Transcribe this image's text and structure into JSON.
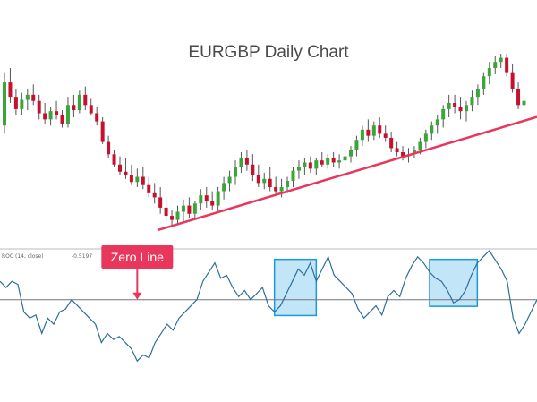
{
  "chart_data": [
    {
      "type": "candlestick",
      "title": "EURGBP Daily Chart",
      "colors": {
        "up": "#3aa63a",
        "down": "#c8102e",
        "wick": "#555555",
        "trendline": "#e8365d"
      },
      "candles": [
        {
          "o": 0.3,
          "h": 0.82,
          "l": 0.22,
          "c": 0.72
        },
        {
          "o": 0.72,
          "h": 0.86,
          "l": 0.52,
          "c": 0.58
        },
        {
          "o": 0.58,
          "h": 0.66,
          "l": 0.4,
          "c": 0.46
        },
        {
          "o": 0.46,
          "h": 0.62,
          "l": 0.4,
          "c": 0.55
        },
        {
          "o": 0.55,
          "h": 0.66,
          "l": 0.45,
          "c": 0.6
        },
        {
          "o": 0.6,
          "h": 0.7,
          "l": 0.5,
          "c": 0.54
        },
        {
          "o": 0.54,
          "h": 0.6,
          "l": 0.36,
          "c": 0.42
        },
        {
          "o": 0.42,
          "h": 0.52,
          "l": 0.32,
          "c": 0.36
        },
        {
          "o": 0.36,
          "h": 0.48,
          "l": 0.3,
          "c": 0.44
        },
        {
          "o": 0.44,
          "h": 0.54,
          "l": 0.36,
          "c": 0.4
        },
        {
          "o": 0.4,
          "h": 0.45,
          "l": 0.28,
          "c": 0.32
        },
        {
          "o": 0.32,
          "h": 0.58,
          "l": 0.28,
          "c": 0.5
        },
        {
          "o": 0.5,
          "h": 0.6,
          "l": 0.38,
          "c": 0.45
        },
        {
          "o": 0.45,
          "h": 0.64,
          "l": 0.42,
          "c": 0.6
        },
        {
          "o": 0.6,
          "h": 0.68,
          "l": 0.45,
          "c": 0.5
        },
        {
          "o": 0.5,
          "h": 0.56,
          "l": 0.4,
          "c": 0.42
        },
        {
          "o": 0.42,
          "h": 0.48,
          "l": 0.3,
          "c": 0.34
        },
        {
          "o": 0.34,
          "h": 0.38,
          "l": 0.12,
          "c": 0.14
        },
        {
          "o": 0.14,
          "h": 0.2,
          "l": -0.02,
          "c": 0.02
        },
        {
          "o": 0.02,
          "h": 0.06,
          "l": -0.1,
          "c": -0.08
        },
        {
          "o": -0.08,
          "h": 0.0,
          "l": -0.18,
          "c": -0.15
        },
        {
          "o": -0.15,
          "h": -0.02,
          "l": -0.22,
          "c": -0.18
        },
        {
          "o": -0.18,
          "h": -0.08,
          "l": -0.28,
          "c": -0.25
        },
        {
          "o": -0.25,
          "h": -0.12,
          "l": -0.3,
          "c": -0.2
        },
        {
          "o": -0.2,
          "h": -0.1,
          "l": -0.32,
          "c": -0.28
        },
        {
          "o": -0.28,
          "h": -0.2,
          "l": -0.4,
          "c": -0.36
        },
        {
          "o": -0.36,
          "h": -0.26,
          "l": -0.46,
          "c": -0.4
        },
        {
          "o": -0.4,
          "h": -0.3,
          "l": -0.56,
          "c": -0.5
        },
        {
          "o": -0.5,
          "h": -0.4,
          "l": -0.64,
          "c": -0.58
        },
        {
          "o": -0.58,
          "h": -0.52,
          "l": -0.68,
          "c": -0.62
        },
        {
          "o": -0.62,
          "h": -0.48,
          "l": -0.66,
          "c": -0.54
        },
        {
          "o": -0.54,
          "h": -0.42,
          "l": -0.64,
          "c": -0.48
        },
        {
          "o": -0.48,
          "h": -0.4,
          "l": -0.6,
          "c": -0.56
        },
        {
          "o": -0.56,
          "h": -0.44,
          "l": -0.62,
          "c": -0.46
        },
        {
          "o": -0.46,
          "h": -0.32,
          "l": -0.52,
          "c": -0.38
        },
        {
          "o": -0.38,
          "h": -0.3,
          "l": -0.5,
          "c": -0.44
        },
        {
          "o": -0.44,
          "h": -0.34,
          "l": -0.52,
          "c": -0.48
        },
        {
          "o": -0.48,
          "h": -0.3,
          "l": -0.54,
          "c": -0.34
        },
        {
          "o": -0.34,
          "h": -0.2,
          "l": -0.42,
          "c": -0.26
        },
        {
          "o": -0.26,
          "h": -0.14,
          "l": -0.34,
          "c": -0.2
        },
        {
          "o": -0.2,
          "h": -0.04,
          "l": -0.28,
          "c": -0.1
        },
        {
          "o": -0.1,
          "h": 0.04,
          "l": -0.16,
          "c": -0.02
        },
        {
          "o": -0.02,
          "h": 0.06,
          "l": -0.14,
          "c": -0.08
        },
        {
          "o": -0.08,
          "h": 0.02,
          "l": -0.24,
          "c": -0.18
        },
        {
          "o": -0.18,
          "h": -0.08,
          "l": -0.3,
          "c": -0.26
        },
        {
          "o": -0.26,
          "h": -0.16,
          "l": -0.32,
          "c": -0.22
        },
        {
          "o": -0.22,
          "h": -0.1,
          "l": -0.34,
          "c": -0.3
        },
        {
          "o": -0.3,
          "h": -0.2,
          "l": -0.38,
          "c": -0.34
        },
        {
          "o": -0.34,
          "h": -0.22,
          "l": -0.4,
          "c": -0.3
        },
        {
          "o": -0.3,
          "h": -0.2,
          "l": -0.36,
          "c": -0.24
        },
        {
          "o": -0.24,
          "h": -0.1,
          "l": -0.3,
          "c": -0.14
        },
        {
          "o": -0.14,
          "h": -0.04,
          "l": -0.22,
          "c": -0.1
        },
        {
          "o": -0.1,
          "h": -0.02,
          "l": -0.18,
          "c": -0.06
        },
        {
          "o": -0.06,
          "h": 0.0,
          "l": -0.16,
          "c": -0.12
        },
        {
          "o": -0.12,
          "h": -0.02,
          "l": -0.18,
          "c": -0.04
        },
        {
          "o": -0.04,
          "h": 0.04,
          "l": -0.1,
          "c": -0.08
        },
        {
          "o": -0.08,
          "h": 0.02,
          "l": -0.12,
          "c": -0.02
        },
        {
          "o": -0.02,
          "h": 0.04,
          "l": -0.1,
          "c": -0.06
        },
        {
          "o": -0.06,
          "h": 0.02,
          "l": -0.12,
          "c": -0.04
        },
        {
          "o": -0.04,
          "h": 0.06,
          "l": -0.1,
          "c": 0.0
        },
        {
          "o": 0.0,
          "h": 0.1,
          "l": -0.06,
          "c": 0.06
        },
        {
          "o": 0.06,
          "h": 0.2,
          "l": 0.0,
          "c": 0.16
        },
        {
          "o": 0.16,
          "h": 0.3,
          "l": 0.1,
          "c": 0.26
        },
        {
          "o": 0.26,
          "h": 0.36,
          "l": 0.14,
          "c": 0.2
        },
        {
          "o": 0.2,
          "h": 0.34,
          "l": 0.16,
          "c": 0.3
        },
        {
          "o": 0.3,
          "h": 0.38,
          "l": 0.18,
          "c": 0.22
        },
        {
          "o": 0.22,
          "h": 0.3,
          "l": 0.14,
          "c": 0.18
        },
        {
          "o": 0.18,
          "h": 0.24,
          "l": 0.04,
          "c": 0.08
        },
        {
          "o": 0.08,
          "h": 0.14,
          "l": 0.0,
          "c": 0.04
        },
        {
          "o": 0.04,
          "h": 0.1,
          "l": -0.04,
          "c": 0.0
        },
        {
          "o": 0.0,
          "h": 0.08,
          "l": -0.06,
          "c": 0.02
        },
        {
          "o": 0.02,
          "h": 0.1,
          "l": -0.02,
          "c": 0.06
        },
        {
          "o": 0.06,
          "h": 0.18,
          "l": 0.02,
          "c": 0.14
        },
        {
          "o": 0.14,
          "h": 0.26,
          "l": 0.08,
          "c": 0.22
        },
        {
          "o": 0.22,
          "h": 0.34,
          "l": 0.16,
          "c": 0.3
        },
        {
          "o": 0.3,
          "h": 0.4,
          "l": 0.22,
          "c": 0.36
        },
        {
          "o": 0.36,
          "h": 0.5,
          "l": 0.28,
          "c": 0.46
        },
        {
          "o": 0.46,
          "h": 0.6,
          "l": 0.38,
          "c": 0.52
        },
        {
          "o": 0.52,
          "h": 0.6,
          "l": 0.42,
          "c": 0.48
        },
        {
          "o": 0.48,
          "h": 0.58,
          "l": 0.36,
          "c": 0.44
        },
        {
          "o": 0.44,
          "h": 0.54,
          "l": 0.34,
          "c": 0.5
        },
        {
          "o": 0.5,
          "h": 0.64,
          "l": 0.44,
          "c": 0.58
        },
        {
          "o": 0.58,
          "h": 0.7,
          "l": 0.5,
          "c": 0.66
        },
        {
          "o": 0.66,
          "h": 0.82,
          "l": 0.6,
          "c": 0.78
        },
        {
          "o": 0.78,
          "h": 0.92,
          "l": 0.7,
          "c": 0.86
        },
        {
          "o": 0.86,
          "h": 0.98,
          "l": 0.8,
          "c": 0.92
        },
        {
          "o": 0.92,
          "h": 1.0,
          "l": 0.86,
          "c": 0.96
        },
        {
          "o": 0.96,
          "h": 1.0,
          "l": 0.78,
          "c": 0.82
        },
        {
          "o": 0.82,
          "h": 0.9,
          "l": 0.62,
          "c": 0.66
        },
        {
          "o": 0.66,
          "h": 0.72,
          "l": 0.46,
          "c": 0.5
        },
        {
          "o": 0.5,
          "h": 0.58,
          "l": 0.4,
          "c": 0.54
        }
      ],
      "trendline": {
        "from": {
          "index": 26.5,
          "value": -0.72
        },
        "to": {
          "index": 92,
          "value": 0.38
        }
      }
    },
    {
      "type": "line",
      "indicator_label": "ROC (14, close)",
      "indicator_value": "-0.5197",
      "zero_line": 0,
      "ylim": [
        -1.1,
        0.8
      ],
      "values": [
        0.3,
        0.2,
        0.3,
        0.25,
        -0.2,
        -0.3,
        -0.25,
        -0.55,
        -0.3,
        -0.4,
        -0.2,
        -0.15,
        0.0,
        -0.1,
        -0.2,
        -0.3,
        -0.4,
        -0.7,
        -0.55,
        -0.65,
        -0.6,
        -0.7,
        -0.8,
        -1.0,
        -0.9,
        -0.95,
        -0.7,
        -0.55,
        -0.4,
        -0.5,
        -0.3,
        -0.2,
        -0.1,
        0.0,
        0.3,
        0.45,
        0.6,
        0.35,
        0.4,
        0.2,
        0.05,
        0.15,
        0.0,
        0.1,
        0.2,
        -0.1,
        -0.2,
        -0.1,
        0.1,
        0.3,
        0.5,
        0.4,
        0.6,
        0.3,
        0.5,
        0.7,
        0.4,
        0.3,
        0.2,
        0.1,
        -0.15,
        -0.3,
        -0.2,
        -0.1,
        -0.25,
        0.05,
        0.15,
        0.05,
        0.35,
        0.55,
        0.7,
        0.6,
        0.45,
        0.35,
        0.3,
        0.15,
        -0.05,
        0.0,
        0.15,
        0.4,
        0.6,
        0.7,
        0.8,
        0.65,
        0.5,
        0.3,
        -0.3,
        -0.55,
        -0.4,
        -0.2,
        0.0
      ],
      "highlights": [
        {
          "from": 46,
          "to": 53
        },
        {
          "from": 72,
          "to": 80
        }
      ],
      "callout": {
        "text": "Zero Line",
        "index": 23
      },
      "colors": {
        "line": "#2c6e9c",
        "zero": "#777777",
        "highlight_fill": "#8fd2f2",
        "highlight_stroke": "#1a9ad6",
        "callout": "#e8365d"
      }
    }
  ]
}
